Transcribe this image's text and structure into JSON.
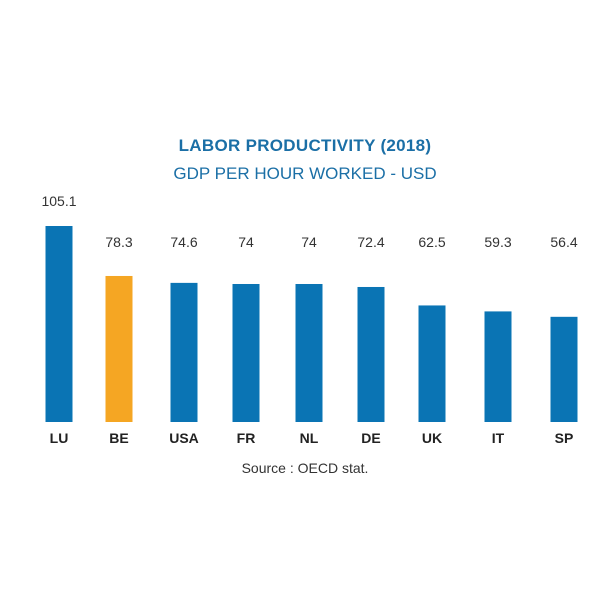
{
  "chart_data": {
    "type": "bar",
    "title": "LABOR PRODUCTIVITY (2018)",
    "subtitle": "GDP PER HOUR WORKED - USD",
    "categories": [
      "LU",
      "BE",
      "USA",
      "FR",
      "NL",
      "DE",
      "UK",
      "IT",
      "SP"
    ],
    "values": [
      105.1,
      78.3,
      74.6,
      74,
      74,
      72.4,
      62.5,
      59.3,
      56.4
    ],
    "value_labels": [
      "105.1",
      "78.3",
      "74.6",
      "74",
      "74",
      "72.4",
      "62.5",
      "59.3",
      "56.4"
    ],
    "highlight_index": 1,
    "xlabel": "",
    "ylabel": "",
    "ylim": [
      0,
      105.1
    ],
    "grid": false,
    "source": "Source : OECD stat."
  },
  "colors": {
    "bar": "#0a74b4",
    "highlight": "#f5a623",
    "title": "#1b6fa6",
    "subtitle": "#1b6fa6"
  }
}
